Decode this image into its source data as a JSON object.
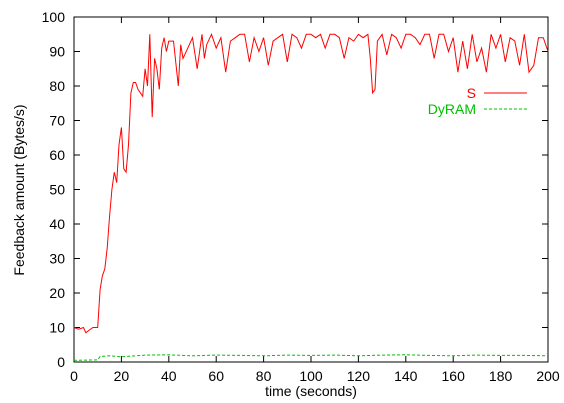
{
  "chart_data": {
    "type": "line",
    "title": "",
    "xlabel": "time (seconds)",
    "ylabel": "Feedback amount (Bytes/s)",
    "xlim": [
      0,
      200
    ],
    "ylim": [
      0,
      100
    ],
    "xticks": [
      0,
      20,
      40,
      60,
      80,
      100,
      120,
      140,
      160,
      180,
      200
    ],
    "yticks": [
      0,
      10,
      20,
      30,
      40,
      50,
      60,
      70,
      80,
      90,
      100
    ],
    "grid": false,
    "legend_position": "top-right",
    "series": [
      {
        "name": "S",
        "color": "#ff0000",
        "dash": "solid",
        "x": [
          0,
          2,
          4,
          5,
          6,
          8,
          10,
          11,
          12,
          13,
          14,
          15,
          16,
          17,
          18,
          19,
          20,
          21,
          22,
          23,
          24,
          25,
          26,
          27,
          28,
          29,
          30,
          31,
          32,
          33,
          34,
          35,
          36,
          37,
          38,
          39,
          40,
          42,
          44,
          45,
          46,
          48,
          50,
          52,
          54,
          55,
          56,
          58,
          60,
          62,
          64,
          66,
          68,
          70,
          72,
          74,
          76,
          78,
          80,
          82,
          84,
          86,
          88,
          90,
          92,
          94,
          96,
          98,
          100,
          102,
          104,
          106,
          108,
          110,
          112,
          114,
          116,
          118,
          120,
          122,
          124,
          125,
          126,
          127,
          128,
          130,
          132,
          134,
          136,
          138,
          140,
          142,
          144,
          146,
          148,
          150,
          152,
          154,
          156,
          158,
          160,
          162,
          164,
          166,
          168,
          170,
          172,
          174,
          176,
          178,
          180,
          182,
          184,
          186,
          188,
          190,
          192,
          194,
          196,
          198,
          200
        ],
        "y": [
          10,
          9.5,
          10,
          8.5,
          9,
          10,
          10,
          21,
          25,
          27,
          33,
          42,
          50,
          55,
          52,
          63,
          68,
          56,
          55,
          63,
          78,
          81,
          81,
          79,
          78,
          77,
          85,
          80,
          95,
          71,
          88,
          85,
          79,
          91,
          94,
          90,
          93,
          93,
          80,
          92,
          88,
          91,
          94,
          85,
          95,
          88,
          92,
          95,
          91,
          94,
          84,
          93,
          94,
          95,
          95,
          87,
          94,
          90,
          94,
          86,
          93,
          94,
          95,
          87,
          95,
          94,
          91,
          95,
          95,
          94,
          95,
          91,
          95,
          95,
          94,
          88,
          94,
          93,
          95,
          94,
          95,
          88,
          78,
          79,
          93,
          95,
          89,
          95,
          94,
          91,
          95,
          95,
          94,
          92,
          95,
          95,
          88,
          95,
          95,
          90,
          94,
          84,
          93,
          85,
          95,
          87,
          91,
          84,
          95,
          91,
          95,
          87,
          94,
          93,
          86,
          95,
          84,
          86,
          94,
          94,
          90
        ]
      },
      {
        "name": "DyRAM",
        "color": "#00c000",
        "dash": "dashed",
        "x": [
          0,
          10,
          11,
          15,
          20,
          30,
          40,
          50,
          60,
          70,
          80,
          90,
          100,
          110,
          120,
          130,
          140,
          150,
          160,
          170,
          180,
          190,
          200
        ],
        "y": [
          0.5,
          0.6,
          1.6,
          1.8,
          1.5,
          2.0,
          2.1,
          1.8,
          2.0,
          1.9,
          1.8,
          2.0,
          1.9,
          2.0,
          1.8,
          2.0,
          2.1,
          1.9,
          1.8,
          2.0,
          1.9,
          1.9,
          1.8
        ]
      }
    ]
  }
}
